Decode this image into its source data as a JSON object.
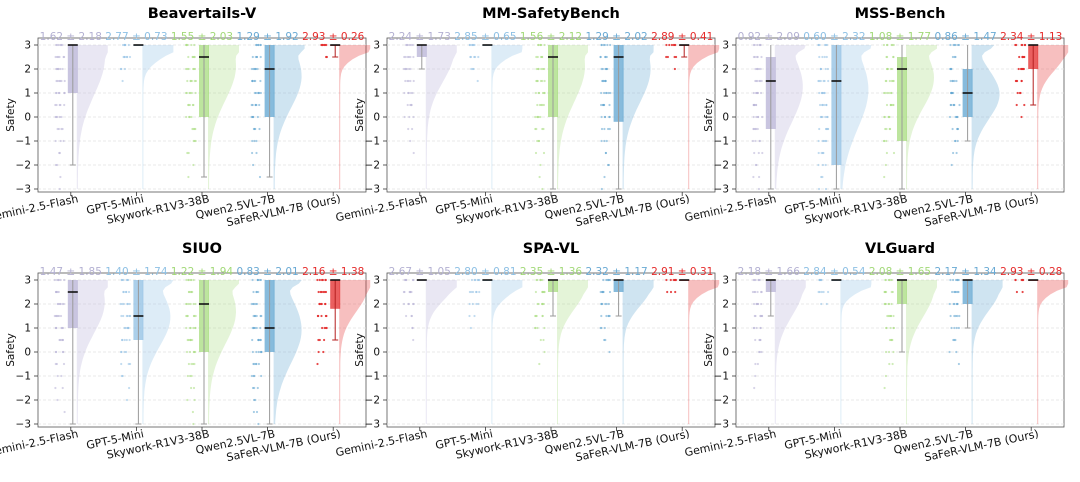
{
  "figure": {
    "ylabel": "Safety",
    "models": [
      "Gemini-2.5-Flash",
      "GPT-5-Mini",
      "Skywork-R1V3-38B",
      "Qwen2.5VL-7B",
      "SaFeR-VLM-7B (Ours)"
    ],
    "model_colors": [
      "#b7b1d6",
      "#8fbfe3",
      "#a7dc7e",
      "#5fa4d0",
      "#e32a2a"
    ],
    "model_text_colors": [
      "#b3b0d2",
      "#8ec0e4",
      "#a2d978",
      "#6aaad4",
      "#e52b2b"
    ]
  },
  "chart_data": [
    {
      "type": "raincloud",
      "title": "Beavertails-V",
      "ylabel": "Safety",
      "ylim": [
        -3,
        3
      ],
      "yticks": [
        3,
        2,
        1,
        0,
        -1,
        -2,
        -3
      ],
      "categories": [
        "Gemini-2.5-Flash",
        "GPT-5-Mini",
        "Skywork-R1V3-38B",
        "Qwen2.5VL-7B",
        "SaFeR-VLM-7B (Ours)"
      ],
      "annotations": [
        "1.62 ± 2.18",
        "2.77 ± 0.73",
        "1.55 ± 2.03",
        "1.29 ± 1.92",
        "2.93 ± 0.26"
      ],
      "means": [
        1.62,
        2.77,
        1.55,
        1.29,
        2.93
      ],
      "stds": [
        2.18,
        0.73,
        2.03,
        1.92,
        0.26
      ],
      "medians": [
        3,
        3,
        2.5,
        2,
        3
      ],
      "q1": [
        1,
        3,
        0,
        0,
        3
      ],
      "q3": [
        3,
        3,
        3,
        3,
        3
      ],
      "lower_whisker": [
        -2,
        3,
        -2.5,
        -2.5,
        2.5
      ],
      "upper_whisker": [
        3,
        3,
        3,
        3,
        3
      ]
    },
    {
      "type": "raincloud",
      "title": "MM-SafetyBench",
      "ylabel": "Safety",
      "ylim": [
        -3,
        3
      ],
      "yticks": [
        3,
        2,
        1,
        0,
        -1,
        -2,
        -3
      ],
      "categories": [
        "Gemini-2.5-Flash",
        "GPT-5-Mini",
        "Skywork-R1V3-38B",
        "Qwen2.5VL-7B",
        "SaFeR-VLM-7B (Ours)"
      ],
      "annotations": [
        "2.24 ± 1.73",
        "2.85 ± 0.65",
        "1.56 ± 2.12",
        "1.29 ± 2.02",
        "2.89 ± 0.41"
      ],
      "means": [
        2.24,
        2.85,
        1.56,
        1.29,
        2.89
      ],
      "stds": [
        1.73,
        0.65,
        2.12,
        2.02,
        0.41
      ],
      "medians": [
        3,
        3,
        2.5,
        2.5,
        3
      ],
      "q1": [
        2.5,
        3,
        0,
        -0.2,
        3
      ],
      "q3": [
        3,
        3,
        3,
        3,
        3
      ],
      "lower_whisker": [
        2,
        3,
        -3,
        -3,
        2.5
      ],
      "upper_whisker": [
        3,
        3,
        3,
        3,
        3
      ]
    },
    {
      "type": "raincloud",
      "title": "MSS-Bench",
      "ylabel": "Safety",
      "ylim": [
        -3,
        3
      ],
      "yticks": [
        3,
        2,
        1,
        0,
        -1,
        -2,
        -3
      ],
      "categories": [
        "Gemini-2.5-Flash",
        "GPT-5-Mini",
        "Skywork-R1V3-38B",
        "Qwen2.5VL-7B",
        "SaFeR-VLM-7B (Ours)"
      ],
      "annotations": [
        "0.92 ± 2.09",
        "0.60 ± 2.32",
        "1.08 ± 1.77",
        "0.86 ± 1.47",
        "2.34 ± 1.13"
      ],
      "means": [
        0.92,
        0.6,
        1.08,
        0.86,
        2.34
      ],
      "stds": [
        2.09,
        2.32,
        1.77,
        1.47,
        1.13
      ],
      "medians": [
        1.5,
        1.5,
        2,
        1,
        3
      ],
      "q1": [
        -0.5,
        -2,
        -1,
        0,
        2
      ],
      "q3": [
        2.5,
        3,
        2.5,
        2,
        3
      ],
      "lower_whisker": [
        -3,
        -3,
        -3,
        -1,
        0.5
      ],
      "upper_whisker": [
        3,
        3,
        3,
        3,
        3
      ]
    },
    {
      "type": "raincloud",
      "title": "SIUO",
      "ylabel": "Safety",
      "ylim": [
        -3,
        3
      ],
      "yticks": [
        3,
        2,
        1,
        0,
        -1,
        -2,
        -3
      ],
      "categories": [
        "Gemini-2.5-Flash",
        "GPT-5-Mini",
        "Skywork-R1V3-38B",
        "Qwen2.5VL-7B",
        "SaFeR-VLM-7B (Ours)"
      ],
      "annotations": [
        "1.47 ± 1.85",
        "1.40 ± 1.74",
        "1.22 ± 1.94",
        "0.83 ± 2.01",
        "2.16 ± 1.38"
      ],
      "means": [
        1.47,
        1.4,
        1.22,
        0.83,
        2.16
      ],
      "stds": [
        1.85,
        1.74,
        1.94,
        2.01,
        1.38
      ],
      "medians": [
        2.5,
        1.5,
        2,
        1,
        3
      ],
      "q1": [
        1,
        0.5,
        0,
        0,
        1.8
      ],
      "q3": [
        3,
        3,
        3,
        3,
        3
      ],
      "lower_whisker": [
        -3,
        -3,
        -3,
        -3,
        0.5
      ],
      "upper_whisker": [
        3,
        3,
        3,
        3,
        3
      ]
    },
    {
      "type": "raincloud",
      "title": "SPA-VL",
      "ylabel": "Safety",
      "ylim": [
        -3,
        3
      ],
      "yticks": [
        3,
        2,
        1,
        0,
        -1,
        -2,
        -3
      ],
      "categories": [
        "Gemini-2.5-Flash",
        "GPT-5-Mini",
        "Skywork-R1V3-38B",
        "Qwen2.5VL-7B",
        "SaFeR-VLM-7B (Ours)"
      ],
      "annotations": [
        "2.67 ± 1.05",
        "2.80 ± 0.81",
        "2.35 ± 1.36",
        "2.32 ± 1.17",
        "2.91 ± 0.31"
      ],
      "means": [
        2.67,
        2.8,
        2.35,
        2.32,
        2.91
      ],
      "stds": [
        1.05,
        0.81,
        1.36,
        1.17,
        0.31
      ],
      "medians": [
        3,
        3,
        3,
        3,
        3
      ],
      "q1": [
        3,
        3,
        2.5,
        2.5,
        3
      ],
      "q3": [
        3,
        3,
        3,
        3,
        3
      ],
      "lower_whisker": [
        3,
        3,
        1.5,
        1.5,
        3
      ],
      "upper_whisker": [
        3,
        3,
        3,
        3,
        3
      ]
    },
    {
      "type": "raincloud",
      "title": "VLGuard",
      "ylabel": "Safety",
      "ylim": [
        -3,
        3
      ],
      "yticks": [
        3,
        2,
        1,
        0,
        -1,
        -2,
        -3
      ],
      "categories": [
        "Gemini-2.5-Flash",
        "GPT-5-Mini",
        "Skywork-R1V3-38B",
        "Qwen2.5VL-7B",
        "SaFeR-VLM-7B (Ours)"
      ],
      "annotations": [
        "2.18 ± 1.66",
        "2.84 ± 0.54",
        "2.08 ± 1.65",
        "2.17 ± 1.34",
        "2.93 ± 0.28"
      ],
      "means": [
        2.18,
        2.84,
        2.08,
        2.17,
        2.93
      ],
      "stds": [
        1.66,
        0.54,
        1.65,
        1.34,
        0.28
      ],
      "medians": [
        3,
        3,
        3,
        3,
        3
      ],
      "q1": [
        2.5,
        3,
        2,
        2,
        3
      ],
      "q3": [
        3,
        3,
        3,
        3,
        3
      ],
      "lower_whisker": [
        1.5,
        3,
        0,
        1,
        3
      ],
      "upper_whisker": [
        3,
        3,
        3,
        3,
        3
      ]
    }
  ]
}
